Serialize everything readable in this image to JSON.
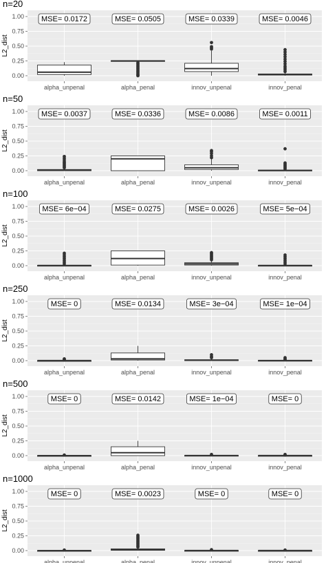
{
  "chart_data": [
    {
      "type": "box",
      "title": "n=20",
      "ylabel": "L2_dist",
      "ylim": [
        0,
        1.0
      ],
      "yticks": [
        "0.00",
        "0.25",
        "0.50",
        "0.75",
        "1.00"
      ],
      "categories": [
        "alpha_unpenal",
        "alpha_penal",
        "innov_unpenal",
        "innov_penal"
      ],
      "mse_labels": [
        "MSE= 0.0172",
        "MSE= 0.0505",
        "MSE= 0.0339",
        "MSE= 0.0046"
      ],
      "boxes": [
        {
          "q1": 0.02,
          "median": 0.06,
          "q3": 0.18,
          "whisker_low": 0.0,
          "whisker_high": 0.23,
          "outliers": []
        },
        {
          "q1": 0.245,
          "median": 0.25,
          "q3": 0.255,
          "whisker_low": 0.24,
          "whisker_high": 0.26,
          "outliers": [
            0.0,
            0.01,
            0.02,
            0.04,
            0.06,
            0.08,
            0.1,
            0.12,
            0.14,
            0.16,
            0.18,
            0.2,
            0.22
          ]
        },
        {
          "q1": 0.07,
          "median": 0.12,
          "q3": 0.21,
          "whisker_low": 0.0,
          "whisker_high": 0.42,
          "outliers": [
            0.45,
            0.47,
            0.49,
            0.56
          ]
        },
        {
          "q1": 0.01,
          "median": 0.02,
          "q3": 0.03,
          "whisker_low": 0.0,
          "whisker_high": 0.05,
          "outliers": [
            0.07,
            0.1,
            0.13,
            0.16,
            0.2,
            0.24,
            0.28,
            0.32,
            0.36,
            0.4,
            0.44
          ]
        }
      ]
    },
    {
      "type": "box",
      "title": "n=50",
      "ylabel": "L2_dist",
      "ylim": [
        0,
        1.0
      ],
      "yticks": [
        "0.00",
        "0.25",
        "0.50",
        "0.75",
        "1.00"
      ],
      "categories": [
        "alpha_unpenal",
        "alpha_penal",
        "innov_unpenal",
        "innov_penal"
      ],
      "mse_labels": [
        "MSE= 0.0037",
        "MSE= 0.0336",
        "MSE= 0.0086",
        "MSE= 0.0011"
      ],
      "boxes": [
        {
          "q1": 0.0,
          "median": 0.01,
          "q3": 0.02,
          "whisker_low": 0.0,
          "whisker_high": 0.04,
          "outliers": [
            0.05,
            0.07,
            0.09,
            0.11,
            0.13,
            0.15,
            0.18,
            0.21,
            0.24
          ]
        },
        {
          "q1": 0.0,
          "median": 0.2,
          "q3": 0.25,
          "whisker_low": 0.0,
          "whisker_high": 0.25,
          "outliers": []
        },
        {
          "q1": 0.02,
          "median": 0.05,
          "q3": 0.1,
          "whisker_low": 0.0,
          "whisker_high": 0.2,
          "outliers": [
            0.22,
            0.25,
            0.29,
            0.32,
            0.34
          ]
        },
        {
          "q1": 0.0,
          "median": 0.005,
          "q3": 0.01,
          "whisker_low": 0.0,
          "whisker_high": 0.02,
          "outliers": [
            0.03,
            0.05,
            0.07,
            0.09,
            0.11,
            0.13,
            0.37
          ]
        }
      ]
    },
    {
      "type": "box",
      "title": "n=100",
      "ylabel": "L2_dist",
      "ylim": [
        0,
        1.0
      ],
      "yticks": [
        "0.00",
        "0.25",
        "0.50",
        "0.75",
        "1.00"
      ],
      "categories": [
        "alpha_unpenal",
        "alpha_penal",
        "innov_unpenal",
        "innov_penal"
      ],
      "mse_labels": [
        "MSE= 6e−04",
        "MSE= 0.0275",
        "MSE= 0.0026",
        "MSE= 5e−04"
      ],
      "boxes": [
        {
          "q1": 0.0,
          "median": 0.003,
          "q3": 0.006,
          "whisker_low": 0.0,
          "whisker_high": 0.01,
          "outliers": [
            0.03,
            0.06,
            0.09,
            0.12,
            0.15,
            0.18,
            0.21
          ]
        },
        {
          "q1": 0.01,
          "median": 0.12,
          "q3": 0.25,
          "whisker_low": 0.0,
          "whisker_high": 0.25,
          "outliers": []
        },
        {
          "q1": 0.01,
          "median": 0.03,
          "q3": 0.05,
          "whisker_low": 0.0,
          "whisker_high": 0.08,
          "outliers": [
            0.1,
            0.12,
            0.14,
            0.16,
            0.18,
            0.2,
            0.22
          ]
        },
        {
          "q1": 0.0,
          "median": 0.003,
          "q3": 0.006,
          "whisker_low": 0.0,
          "whisker_high": 0.01,
          "outliers": [
            0.03,
            0.06,
            0.09,
            0.12,
            0.15,
            0.18
          ]
        }
      ]
    },
    {
      "type": "box",
      "title": "n=250",
      "ylabel": "L2_dist",
      "ylim": [
        0,
        1.0
      ],
      "yticks": [
        "0.00",
        "0.25",
        "0.50",
        "0.75",
        "1.00"
      ],
      "categories": [
        "alpha_unpenal",
        "alpha_penal",
        "innov_unpenal",
        "innov_penal"
      ],
      "mse_labels": [
        "MSE= 0",
        "MSE= 0.0134",
        "MSE= 3e−04",
        "MSE= 1e−04"
      ],
      "boxes": [
        {
          "q1": 0.0,
          "median": 0.001,
          "q3": 0.002,
          "whisker_low": 0.0,
          "whisker_high": 0.004,
          "outliers": [
            0.01,
            0.02,
            0.03
          ]
        },
        {
          "q1": 0.01,
          "median": 0.03,
          "q3": 0.13,
          "whisker_low": 0.0,
          "whisker_high": 0.25,
          "outliers": []
        },
        {
          "q1": 0.003,
          "median": 0.008,
          "q3": 0.015,
          "whisker_low": 0.0,
          "whisker_high": 0.03,
          "outliers": [
            0.05,
            0.07,
            0.1
          ]
        },
        {
          "q1": 0.0,
          "median": 0.002,
          "q3": 0.005,
          "whisker_low": 0.0,
          "whisker_high": 0.01,
          "outliers": [
            0.02,
            0.03,
            0.05
          ]
        }
      ]
    },
    {
      "type": "box",
      "title": "n=500",
      "ylabel": "L2_dist",
      "ylim": [
        0,
        1.0
      ],
      "yticks": [
        "0.00",
        "0.25",
        "0.50",
        "0.75",
        "1.00"
      ],
      "categories": [
        "alpha_unpenal",
        "alpha_penal",
        "innov_unpenal",
        "innov_penal"
      ],
      "mse_labels": [
        "MSE= 0",
        "MSE= 0.0142",
        "MSE= 1e−04",
        "MSE= 0"
      ],
      "boxes": [
        {
          "q1": 0.0,
          "median": 0.0,
          "q3": 0.002,
          "whisker_low": 0.0,
          "whisker_high": 0.004,
          "outliers": [
            0.01
          ]
        },
        {
          "q1": 0.0,
          "median": 0.05,
          "q3": 0.15,
          "whisker_low": 0.0,
          "whisker_high": 0.25,
          "outliers": []
        },
        {
          "q1": 0.0,
          "median": 0.002,
          "q3": 0.005,
          "whisker_low": 0.0,
          "whisker_high": 0.01,
          "outliers": [
            0.02
          ]
        },
        {
          "q1": 0.0,
          "median": 0.001,
          "q3": 0.003,
          "whisker_low": 0.0,
          "whisker_high": 0.006,
          "outliers": [
            0.01,
            0.02
          ]
        }
      ]
    },
    {
      "type": "box",
      "title": "n=1000",
      "ylabel": "L2_dist",
      "ylim": [
        0,
        1.0
      ],
      "yticks": [
        "0.00",
        "0.25",
        "0.50",
        "0.75",
        "1.00"
      ],
      "categories": [
        "alpha_unpenal",
        "alpha_penal",
        "innov_unpenal",
        "innov_penal"
      ],
      "mse_labels": [
        "MSE= 0",
        "MSE= 0.0023",
        "MSE= 0",
        "MSE= 0"
      ],
      "boxes": [
        {
          "q1": 0.0,
          "median": 0.0,
          "q3": 0.002,
          "whisker_low": 0.0,
          "whisker_high": 0.003,
          "outliers": [
            0.01
          ]
        },
        {
          "q1": 0.005,
          "median": 0.015,
          "q3": 0.03,
          "whisker_low": 0.0,
          "whisker_high": 0.05,
          "outliers": [
            0.06,
            0.08,
            0.1,
            0.12,
            0.14,
            0.16,
            0.18,
            0.2,
            0.22,
            0.24,
            0.26
          ]
        },
        {
          "q1": 0.0,
          "median": 0.001,
          "q3": 0.003,
          "whisker_low": 0.0,
          "whisker_high": 0.006,
          "outliers": [
            0.015
          ]
        },
        {
          "q1": 0.0,
          "median": 0.001,
          "q3": 0.002,
          "whisker_low": 0.0,
          "whisker_high": 0.004,
          "outliers": [
            0.01
          ]
        }
      ]
    }
  ]
}
